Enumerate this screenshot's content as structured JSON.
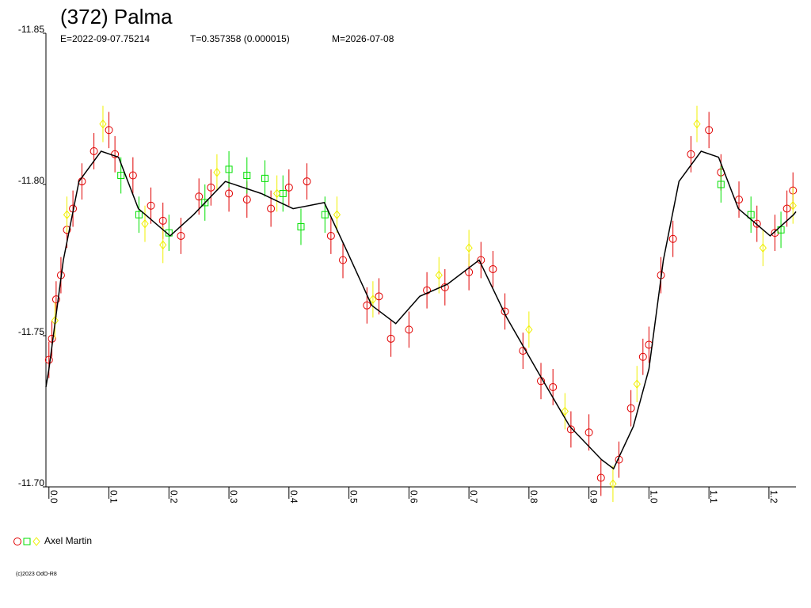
{
  "chart_data": {
    "type": "scatter",
    "title": "(372) Palma",
    "subtitle": [
      "E=2022-09-07.75214",
      "T=0.357358 (0.000015)",
      "M=2026-07-08"
    ],
    "legend": "Axel Martin",
    "copyright": "(c)2023 OdO-R8",
    "xlim": [
      -0.005,
      1.245
    ],
    "ylim": [
      -11.85,
      -11.7
    ],
    "y_inverted": true,
    "xticks": [
      {
        "value": 0,
        "label": "0.0"
      },
      0.1,
      0.2,
      0.3,
      0.4,
      0.5,
      0.6,
      0.7,
      0.8,
      0.9,
      {
        "value": 1,
        "label": "1.0"
      },
      1.1,
      1.2
    ],
    "yticks": [
      {
        "value": -11.85,
        "label": "-11.85"
      },
      {
        "value": -11.8,
        "label": "-11.80"
      },
      -11.75,
      {
        "value": -11.7,
        "label": "-11.70"
      }
    ],
    "series": [
      {
        "marker": "circle",
        "color": "#e00000",
        "error": 0.006,
        "x": [
          0.0,
          0.005,
          0.012,
          0.02,
          0.03,
          0.04,
          0.055,
          0.075,
          0.1,
          0.11,
          0.14,
          0.17,
          0.19,
          0.22,
          0.25,
          0.27,
          0.3,
          0.33,
          0.37,
          0.4,
          0.43,
          0.47,
          0.49,
          0.53,
          0.55,
          0.57,
          0.6,
          0.63,
          0.66,
          0.7,
          0.72,
          0.74,
          0.76,
          0.79,
          0.82,
          0.84,
          0.87,
          0.9,
          0.92,
          0.95,
          0.97,
          0.99,
          1.0,
          1.02,
          1.04,
          1.07,
          1.1,
          1.12,
          1.15,
          1.18,
          1.21,
          1.23,
          1.24
        ],
        "values": [
          -11.742,
          -11.749,
          -11.762,
          -11.77,
          -11.785,
          -11.792,
          -11.801,
          -11.811,
          -11.818,
          -11.81,
          -11.803,
          -11.793,
          -11.788,
          -11.783,
          -11.796,
          -11.799,
          -11.797,
          -11.795,
          -11.792,
          -11.799,
          -11.801,
          -11.783,
          -11.775,
          -11.76,
          -11.763,
          -11.749,
          -11.752,
          -11.765,
          -11.766,
          -11.771,
          -11.775,
          -11.772,
          -11.758,
          -11.745,
          -11.735,
          -11.733,
          -11.719,
          -11.718,
          -11.703,
          -11.709,
          -11.726,
          -11.743,
          -11.747,
          -11.77,
          -11.782,
          -11.81,
          -11.818,
          -11.804,
          -11.795,
          -11.787,
          -11.784,
          -11.792,
          -11.798
        ]
      },
      {
        "marker": "square",
        "color": "#00e000",
        "error": 0.006,
        "x": [
          0.12,
          0.15,
          0.2,
          0.26,
          0.3,
          0.33,
          0.36,
          0.39,
          0.42,
          0.46,
          1.12,
          1.17,
          1.22
        ],
        "values": [
          -11.803,
          -11.79,
          -11.784,
          -11.794,
          -11.805,
          -11.803,
          -11.802,
          -11.797,
          -11.786,
          -11.79,
          -11.8,
          -11.79,
          -11.785
        ]
      },
      {
        "marker": "diamond",
        "color": "#f0f000",
        "error": 0.006,
        "x": [
          0.01,
          0.03,
          0.09,
          0.16,
          0.19,
          0.28,
          0.38,
          0.48,
          0.54,
          0.65,
          0.7,
          0.8,
          0.86,
          0.94,
          0.98,
          1.08,
          1.19,
          1.24
        ],
        "values": [
          -11.755,
          -11.79,
          -11.82,
          -11.787,
          -11.78,
          -11.804,
          -11.797,
          -11.79,
          -11.762,
          -11.77,
          -11.779,
          -11.752,
          -11.725,
          -11.701,
          -11.734,
          -11.82,
          -11.779,
          -11.793
        ]
      }
    ],
    "fit": {
      "color": "#000000",
      "x": [
        -0.005,
        0.0,
        0.024,
        0.05,
        0.087,
        0.116,
        0.149,
        0.202,
        0.241,
        0.294,
        0.354,
        0.407,
        0.459,
        0.499,
        0.538,
        0.578,
        0.618,
        0.664,
        0.717,
        0.763,
        0.815,
        0.868,
        0.921,
        0.941,
        0.974,
        1.0,
        1.024,
        1.05,
        1.087,
        1.116,
        1.149,
        1.202,
        1.241,
        1.245
      ],
      "values": [
        -11.733,
        -11.739,
        -11.775,
        -11.801,
        -11.811,
        -11.809,
        -11.792,
        -11.783,
        -11.79,
        -11.801,
        -11.797,
        -11.792,
        -11.794,
        -11.777,
        -11.76,
        -11.754,
        -11.763,
        -11.767,
        -11.775,
        -11.756,
        -11.738,
        -11.72,
        -11.709,
        -11.706,
        -11.72,
        -11.739,
        -11.775,
        -11.801,
        -11.811,
        -11.809,
        -11.792,
        -11.783,
        -11.79,
        -11.791
      ]
    }
  }
}
